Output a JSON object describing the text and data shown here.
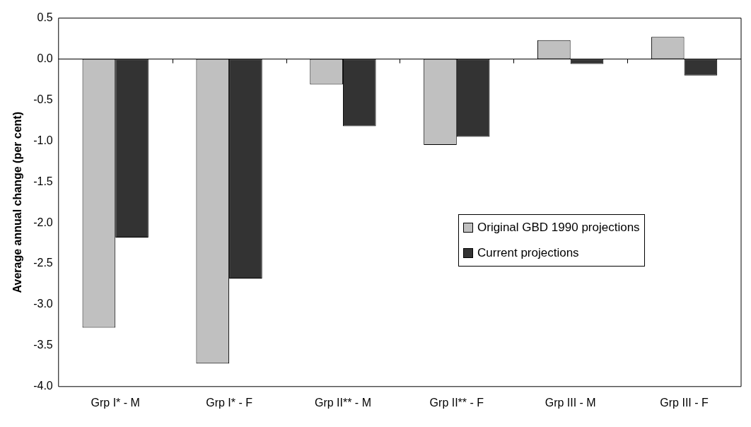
{
  "chart_data": {
    "type": "bar",
    "ylabel": "Average annual change (per cent)",
    "categories": [
      "Grp I* - M",
      "Grp I* - F",
      "Grp II** - M",
      "Grp II** - F",
      "Grp III - M",
      "Grp III - F"
    ],
    "series": [
      {
        "name": "Original GBD 1990 projections",
        "color": "#c0c0c0",
        "values": [
          -3.28,
          -3.72,
          -0.31,
          -1.05,
          0.23,
          0.27
        ]
      },
      {
        "name": "Current projections",
        "color": "#333333",
        "values": [
          -2.18,
          -2.68,
          -0.82,
          -0.95,
          -0.06,
          -0.2
        ]
      }
    ],
    "ylim": [
      -4.0,
      0.5
    ],
    "yticks": [
      {
        "value": 0.5,
        "label": "0.5"
      },
      {
        "value": 0,
        "label": "0.0"
      },
      {
        "value": -0.5,
        "label": "-0.5"
      },
      {
        "value": -1,
        "label": "-1.0"
      },
      {
        "value": -1.5,
        "label": "-1.5"
      },
      {
        "value": -2,
        "label": "-2.0"
      },
      {
        "value": -2.5,
        "label": "-2.5"
      },
      {
        "value": -3,
        "label": "-3.0"
      },
      {
        "value": -3.5,
        "label": "-3.5"
      },
      {
        "value": -4,
        "label": "-4.0"
      }
    ],
    "legend": "right"
  }
}
